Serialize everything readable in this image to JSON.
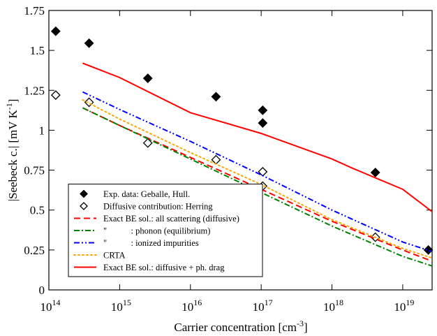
{
  "chart_data": {
    "type": "line",
    "xlabel": {
      "text": "Carrier concentration [cm",
      "sup": "-3",
      "tail": "]"
    },
    "ylabel": {
      "text": "|Seebeck c.| [mV K",
      "sup": "-1",
      "tail": "]"
    },
    "xscale": "log",
    "xlim": [
      100000000000000.0,
      2.6e+19
    ],
    "ylim": [
      0,
      1.75
    ],
    "xticks": [
      {
        "value": 100000000000000.0,
        "label": "10",
        "sup": "14"
      },
      {
        "value": 1000000000000000.0,
        "label": "10",
        "sup": "15"
      },
      {
        "value": 1e+16,
        "label": "10",
        "sup": "16"
      },
      {
        "value": 1e+17,
        "label": "10",
        "sup": "17"
      },
      {
        "value": 1e+18,
        "label": "10",
        "sup": "18"
      },
      {
        "value": 1e+19,
        "label": "10",
        "sup": "19"
      }
    ],
    "yticks": [
      0,
      0.25,
      0.5,
      0.75,
      1,
      1.25,
      1.5,
      1.75
    ],
    "legend_position": "lower left",
    "series": [
      {
        "name": "Exp. data: Geballe, Hull.",
        "color": "#000000",
        "marker": "filled-diamond",
        "x": [
          125000000000000.0,
          370000000000000.0,
          2500000000000000.0,
          2.3e+16,
          1.05e+17,
          1.05e+17,
          4.1e+18,
          2.3e+19
        ],
        "values": [
          1.62,
          1.545,
          1.325,
          1.21,
          1.125,
          1.045,
          0.735,
          0.25
        ]
      },
      {
        "name": "Diffusive contribution: Herring",
        "color": "#000000",
        "marker": "open-diamond",
        "x": [
          125000000000000.0,
          370000000000000.0,
          2500000000000000.0,
          2.3e+16,
          1.05e+17,
          1.05e+17,
          4.1e+18
        ],
        "values": [
          1.22,
          1.175,
          0.92,
          0.815,
          0.74,
          0.65,
          0.33
        ]
      },
      {
        "name": "Exact BE sol.: all scattering (diffusive)",
        "color": "#ff0000",
        "dash": "dashed",
        "x": [
          300000000000000.0,
          1000000000000000.0,
          1e+16,
          1e+17,
          1e+18,
          1e+19,
          2.6e+19
        ],
        "values": [
          1.14,
          1.03,
          0.83,
          0.63,
          0.43,
          0.25,
          0.18
        ]
      },
      {
        "name": "\"           : phonon (equilibrium)",
        "color": "#008000",
        "dash": "dashdot",
        "x": [
          300000000000000.0,
          1000000000000000.0,
          1e+16,
          1e+17,
          1e+18,
          1e+19,
          2.6e+19
        ],
        "values": [
          1.14,
          1.03,
          0.82,
          0.61,
          0.4,
          0.21,
          0.15
        ]
      },
      {
        "name": "\"           : ionized impurities",
        "color": "#0000ff",
        "dash": "dashdotdot",
        "x": [
          300000000000000.0,
          1000000000000000.0,
          1e+16,
          1e+17,
          1e+18,
          1e+19,
          2.6e+19
        ],
        "values": [
          1.24,
          1.13,
          0.93,
          0.72,
          0.5,
          0.3,
          0.24
        ]
      },
      {
        "name": "CRTA",
        "color": "#ffa500",
        "dash": "dotted",
        "x": [
          300000000000000.0,
          1000000000000000.0,
          1e+16,
          1e+17,
          1e+18,
          1e+19,
          2.6e+19
        ],
        "values": [
          1.19,
          1.07,
          0.86,
          0.66,
          0.44,
          0.26,
          0.2
        ]
      },
      {
        "name": "Exact BE sol.: diffusive + ph. drag",
        "color": "#ff0000",
        "dash": "solid",
        "x": [
          300000000000000.0,
          1000000000000000.0,
          1e+16,
          1e+17,
          1e+18,
          2e+18,
          1e+19,
          2.6e+19
        ],
        "values": [
          1.42,
          1.33,
          1.11,
          0.98,
          0.82,
          0.76,
          0.63,
          0.49
        ]
      }
    ]
  }
}
